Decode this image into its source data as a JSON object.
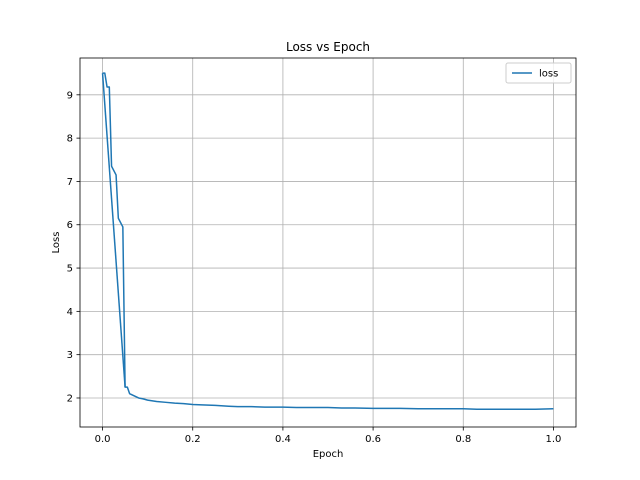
{
  "chart_data": {
    "type": "line",
    "title": "Loss vs Epoch",
    "xlabel": "Epoch",
    "ylabel": "Loss",
    "xlim": [
      -0.05,
      1.05
    ],
    "ylim": [
      1.33,
      9.85
    ],
    "xticks": [
      0.0,
      0.2,
      0.4,
      0.6,
      0.8,
      1.0
    ],
    "xtick_labels": [
      "0.0",
      "0.2",
      "0.4",
      "0.6",
      "0.8",
      "1.0"
    ],
    "yticks": [
      2,
      3,
      4,
      5,
      6,
      7,
      8,
      9
    ],
    "ytick_labels": [
      "2",
      "3",
      "4",
      "5",
      "6",
      "7",
      "8",
      "9"
    ],
    "grid": true,
    "legend_position": "top-right",
    "series": [
      {
        "name": "loss",
        "color": "#1f77b4",
        "x": [
          0.0,
          0.005,
          0.01,
          0.015,
          0.02,
          0.03,
          0.035,
          0.045,
          0.05,
          0.055,
          0.06,
          0.07,
          0.08,
          0.09,
          0.1,
          0.12,
          0.14,
          0.16,
          0.18,
          0.2,
          0.22,
          0.25,
          0.28,
          0.3,
          0.33,
          0.36,
          0.4,
          0.43,
          0.46,
          0.5,
          0.53,
          0.56,
          0.6,
          0.63,
          0.66,
          0.7,
          0.73,
          0.76,
          0.8,
          0.83,
          0.86,
          0.9,
          0.93,
          0.96,
          1.0
        ],
        "y": [
          9.5,
          9.5,
          9.18,
          9.18,
          7.35,
          7.15,
          6.15,
          5.95,
          2.25,
          2.25,
          2.1,
          2.05,
          2.0,
          1.98,
          1.95,
          1.92,
          1.9,
          1.88,
          1.87,
          1.85,
          1.84,
          1.83,
          1.81,
          1.8,
          1.8,
          1.79,
          1.79,
          1.78,
          1.78,
          1.78,
          1.77,
          1.77,
          1.76,
          1.76,
          1.76,
          1.75,
          1.75,
          1.75,
          1.75,
          1.74,
          1.74,
          1.74,
          1.74,
          1.74,
          1.75
        ]
      },
      {
        "name": "",
        "color": "#1f77b4",
        "x": [
          0.0,
          0.05
        ],
        "y": [
          9.5,
          2.25
        ]
      }
    ]
  }
}
